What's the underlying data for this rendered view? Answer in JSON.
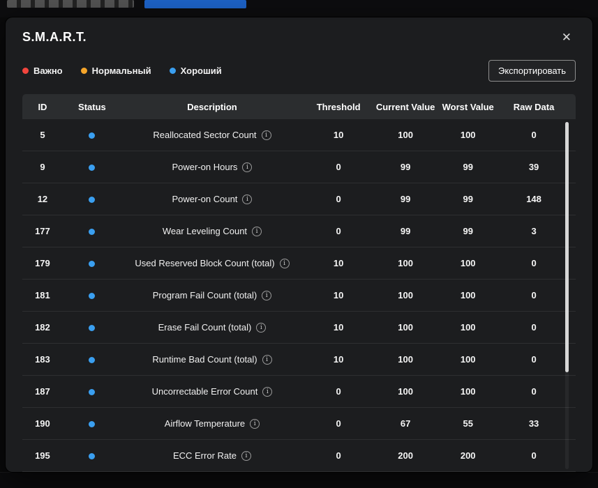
{
  "dialog": {
    "title": "S.M.A.R.T.",
    "export_button": "Экспортировать"
  },
  "icons": {
    "close": "✕",
    "info": "i"
  },
  "legend": {
    "items": [
      {
        "label": "Важно",
        "color": "#f2453d"
      },
      {
        "label": "Нормальный",
        "color": "#f5a52a"
      },
      {
        "label": "Хороший",
        "color": "#3a9ff0"
      }
    ]
  },
  "table": {
    "columns": [
      "ID",
      "Status",
      "Description",
      "Threshold",
      "Current Value",
      "Worst Value",
      "Raw Data"
    ],
    "status_color": "#3a9ff0",
    "rows": [
      {
        "id": "5",
        "description": "Reallocated Sector Count",
        "threshold": "10",
        "current": "100",
        "worst": "100",
        "raw": "0"
      },
      {
        "id": "9",
        "description": "Power-on Hours",
        "threshold": "0",
        "current": "99",
        "worst": "99",
        "raw": "39"
      },
      {
        "id": "12",
        "description": "Power-on Count",
        "threshold": "0",
        "current": "99",
        "worst": "99",
        "raw": "148"
      },
      {
        "id": "177",
        "description": "Wear Leveling Count",
        "threshold": "0",
        "current": "99",
        "worst": "99",
        "raw": "3"
      },
      {
        "id": "179",
        "description": "Used Reserved Block Count (total)",
        "threshold": "10",
        "current": "100",
        "worst": "100",
        "raw": "0"
      },
      {
        "id": "181",
        "description": "Program Fail Count (total)",
        "threshold": "10",
        "current": "100",
        "worst": "100",
        "raw": "0"
      },
      {
        "id": "182",
        "description": "Erase Fail Count (total)",
        "threshold": "10",
        "current": "100",
        "worst": "100",
        "raw": "0"
      },
      {
        "id": "183",
        "description": "Runtime Bad Count (total)",
        "threshold": "10",
        "current": "100",
        "worst": "100",
        "raw": "0"
      },
      {
        "id": "187",
        "description": "Uncorrectable Error Count",
        "threshold": "0",
        "current": "100",
        "worst": "100",
        "raw": "0"
      },
      {
        "id": "190",
        "description": "Airflow Temperature",
        "threshold": "0",
        "current": "67",
        "worst": "55",
        "raw": "33"
      },
      {
        "id": "195",
        "description": "ECC Error Rate",
        "threshold": "0",
        "current": "200",
        "worst": "200",
        "raw": "0"
      }
    ]
  }
}
